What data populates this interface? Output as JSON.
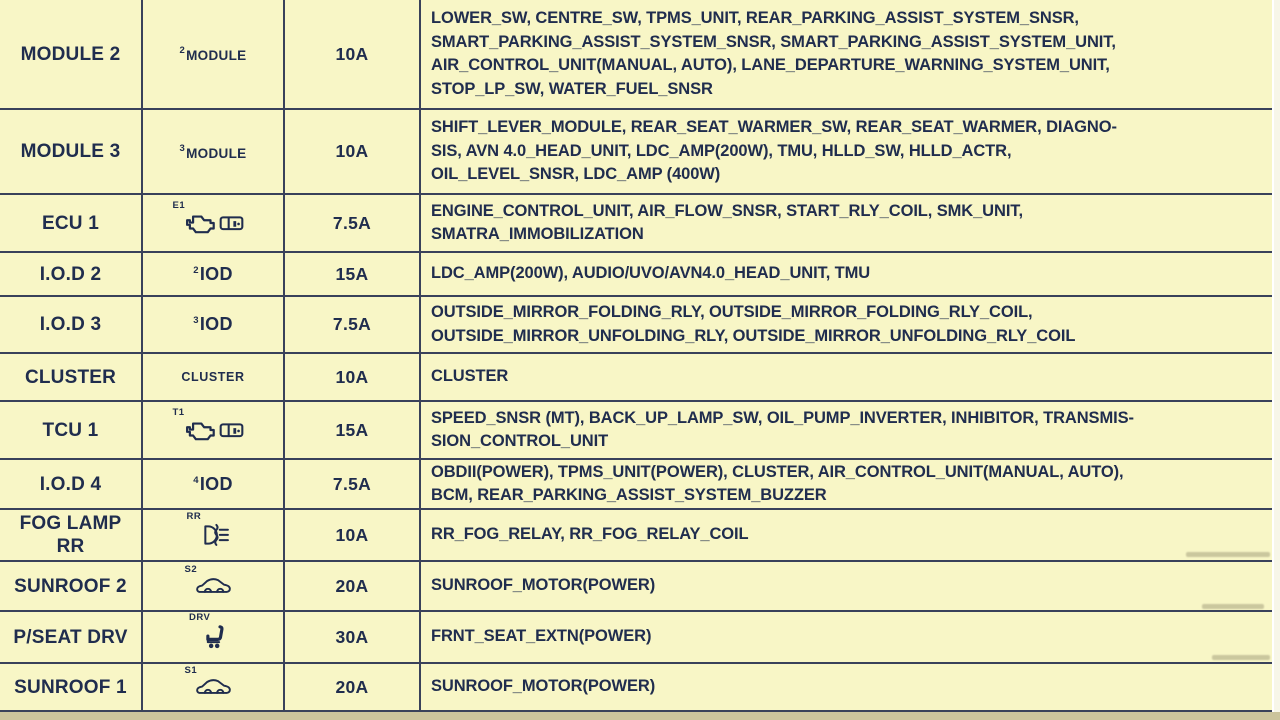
{
  "colors": {
    "background": "#f8f6c6",
    "grid_line": "#39415a",
    "text": "#202d4e",
    "bottom_strip": "#cbc49c",
    "right_margin": "#f7f6e8"
  },
  "table": {
    "columns": [
      "fuse_name",
      "symbol",
      "rating",
      "protected_circuits"
    ],
    "rows": [
      {
        "name": "MODULE 2",
        "symbol": {
          "sup": "2",
          "label": "MODULE"
        },
        "rating": "10A",
        "circuits": [
          "LOWER_SW, CENTRE_SW, TPMS_UNIT, REAR_PARKING_ASSIST_SYSTEM_SNSR,",
          "SMART_PARKING_ASSIST_SYSTEM_SNSR, SMART_PARKING_ASSIST_SYSTEM_UNIT,",
          "AIR_CONTROL_UNIT(MANUAL, AUTO), LANE_DEPARTURE_WARNING_SYSTEM_UNIT,",
          "STOP_LP_SW, WATER_FUEL_SNSR"
        ]
      },
      {
        "name": "MODULE 3",
        "symbol": {
          "sup": "3",
          "label": "MODULE"
        },
        "rating": "10A",
        "circuits": [
          "SHIFT_LEVER_MODULE, REAR_SEAT_WARMER_SW, REAR_SEAT_WARMER, DIAGNO-",
          "SIS, AVN 4.0_HEAD_UNIT, LDC_AMP(200W), TMU, HLLD_SW, HLLD_ACTR,",
          "OIL_LEVEL_SNSR, LDC_AMP (400W)"
        ]
      },
      {
        "name": "ECU 1",
        "symbol": {
          "sup": "E1",
          "icon": "engine-battery-icon"
        },
        "rating": "7.5A",
        "circuits": [
          "ENGINE_CONTROL_UNIT, AIR_FLOW_SNSR, START_RLY_COIL, SMK_UNIT,",
          "SMATRA_IMMOBILIZATION"
        ]
      },
      {
        "name": "I.O.D 2",
        "symbol": {
          "sup": "2",
          "label": "IOD"
        },
        "rating": "15A",
        "circuits": [
          "LDC_AMP(200W), AUDIO/UVO/AVN4.0_HEAD_UNIT, TMU"
        ]
      },
      {
        "name": "I.O.D 3",
        "symbol": {
          "sup": "3",
          "label": "IOD"
        },
        "rating": "7.5A",
        "circuits": [
          "OUTSIDE_MIRROR_FOLDING_RLY, OUTSIDE_MIRROR_FOLDING_RLY_COIL,",
          "OUTSIDE_MIRROR_UNFOLDING_RLY, OUTSIDE_MIRROR_UNFOLDING_RLY_COIL"
        ]
      },
      {
        "name": "CLUSTER",
        "symbol": {
          "label": "CLUSTER"
        },
        "rating": "10A",
        "circuits": [
          "CLUSTER"
        ]
      },
      {
        "name": "TCU 1",
        "symbol": {
          "sup": "T1",
          "icon": "engine-battery-icon"
        },
        "rating": "15A",
        "circuits": [
          "SPEED_SNSR (MT), BACK_UP_LAMP_SW, OIL_PUMP_INVERTER, INHIBITOR, TRANSMIS-",
          "SION_CONTROL_UNIT"
        ]
      },
      {
        "name": "I.O.D 4",
        "symbol": {
          "sup": "4",
          "label": "IOD"
        },
        "rating": "7.5A",
        "circuits": [
          "OBDII(POWER), TPMS_UNIT(POWER), CLUSTER, AIR_CONTROL_UNIT(MANUAL, AUTO),",
          "BCM, REAR_PARKING_ASSIST_SYSTEM_BUZZER"
        ]
      },
      {
        "name": "FOG LAMP\nRR",
        "symbol": {
          "sup": "RR",
          "icon": "rear-fog-lamp-icon"
        },
        "rating": "10A",
        "circuits": [
          "RR_FOG_RELAY, RR_FOG_RELAY_COIL"
        ]
      },
      {
        "name": "SUNROOF 2",
        "symbol": {
          "sup": "S2",
          "icon": "car-sunroof-icon"
        },
        "rating": "20A",
        "circuits": [
          "SUNROOF_MOTOR(POWER)"
        ]
      },
      {
        "name": "P/SEAT DRV",
        "symbol": {
          "sup": "DRV",
          "icon": "power-seat-icon"
        },
        "rating": "30A",
        "circuits": [
          "FRNT_SEAT_EXTN(POWER)"
        ]
      },
      {
        "name": "SUNROOF 1",
        "symbol": {
          "sup": "S1",
          "icon": "car-sunroof-icon"
        },
        "rating": "20A",
        "circuits": [
          "SUNROOF_MOTOR(POWER)"
        ]
      }
    ]
  }
}
